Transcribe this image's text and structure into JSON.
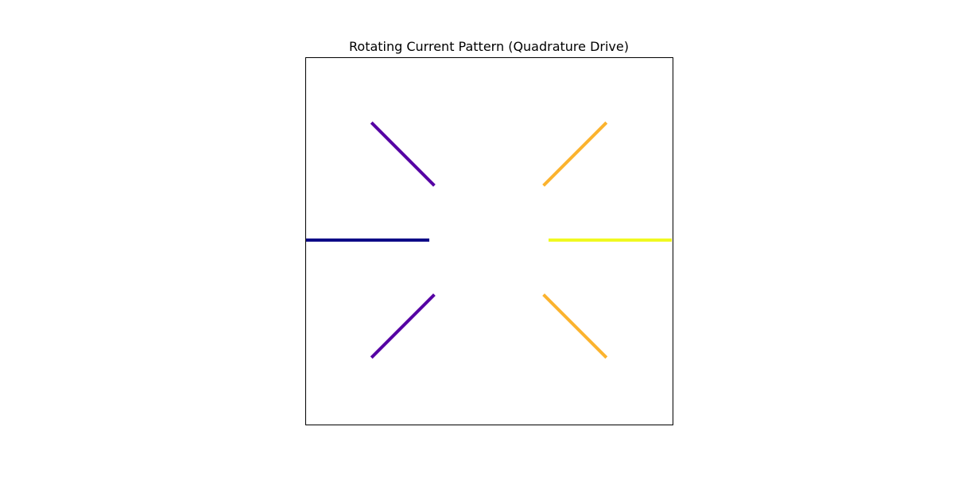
{
  "figure": {
    "title": "Rotating Current Pattern (Quadrature Drive)"
  },
  "diagram": {
    "type": "radial-line-pattern",
    "elements": [
      {
        "name": "current-line-left",
        "angle_deg": 180,
        "color": "#0d0887"
      },
      {
        "name": "current-line-upper-left",
        "angle_deg": 135,
        "color": "#5601a4"
      },
      {
        "name": "current-line-lower-left",
        "angle_deg": 225,
        "color": "#5601a4"
      },
      {
        "name": "current-line-upper-right",
        "angle_deg": 45,
        "color": "#fbb32f"
      },
      {
        "name": "current-line-lower-right",
        "angle_deg": 315,
        "color": "#fbb32f"
      },
      {
        "name": "current-line-right",
        "angle_deg": 0,
        "color": "#f0f921"
      }
    ],
    "colormap": "plasma",
    "axes_visible": false,
    "grid": false
  }
}
